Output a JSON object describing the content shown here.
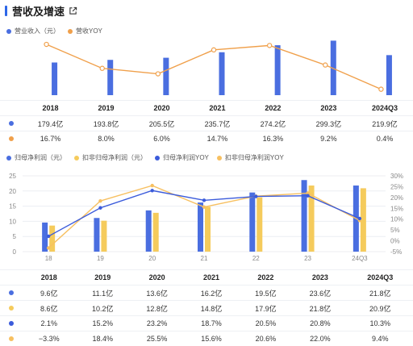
{
  "header": {
    "title": "营收及增速"
  },
  "colors": {
    "blue": "#4a6ee0",
    "orange": "#f0a04b",
    "yellow": "#f5cb5c",
    "darkblue": "#3b5bdb",
    "lightorange": "#f7c061"
  },
  "chart_data": [
    {
      "type": "bar",
      "categories": [
        "2018",
        "2019",
        "2020",
        "2021",
        "2022",
        "2023",
        "2024Q3"
      ],
      "series": [
        {
          "name": "营业收入（元）",
          "values": [
            179.4,
            193.8,
            205.5,
            235.7,
            274.2,
            299.3,
            219.9
          ],
          "labels": [
            "179.4亿",
            "193.8亿",
            "205.5亿",
            "235.7亿",
            "274.2亿",
            "299.3亿",
            "219.9亿"
          ]
        },
        {
          "name": "营收YOY",
          "type": "line",
          "values": [
            16.7,
            8.0,
            6.0,
            14.7,
            16.3,
            9.2,
            0.4
          ],
          "labels": [
            "16.7%",
            "8.0%",
            "6.0%",
            "14.7%",
            "16.3%",
            "9.2%",
            "0.4%"
          ]
        }
      ]
    },
    {
      "type": "bar",
      "categories": [
        "18",
        "19",
        "20",
        "21",
        "22",
        "23",
        "24Q3"
      ],
      "table_categories": [
        "2018",
        "2019",
        "2020",
        "2021",
        "2022",
        "2023",
        "2024Q3"
      ],
      "y_left": {
        "ticks": [
          "0",
          "5",
          "10",
          "15",
          "20",
          "25"
        ],
        "range": [
          0,
          25
        ]
      },
      "y_right": {
        "ticks": [
          "-5%",
          "0%",
          "5%",
          "10%",
          "15%",
          "20%",
          "25%",
          "30%"
        ],
        "range": [
          -5,
          30
        ]
      },
      "series": [
        {
          "name": "归母净利润（元）",
          "values": [
            9.6,
            11.1,
            13.6,
            16.2,
            19.5,
            23.6,
            21.8
          ],
          "labels": [
            "9.6亿",
            "11.1亿",
            "13.6亿",
            "16.2亿",
            "19.5亿",
            "23.6亿",
            "21.8亿"
          ]
        },
        {
          "name": "扣非归母净利润（元）",
          "values": [
            8.6,
            10.2,
            12.8,
            14.8,
            17.9,
            21.8,
            20.9
          ],
          "labels": [
            "8.6亿",
            "10.2亿",
            "12.8亿",
            "14.8亿",
            "17.9亿",
            "21.8亿",
            "20.9亿"
          ]
        },
        {
          "name": "归母净利润YOY",
          "type": "line",
          "values": [
            2.1,
            15.2,
            23.2,
            18.7,
            20.5,
            20.8,
            10.3
          ],
          "labels": [
            "2.1%",
            "15.2%",
            "23.2%",
            "18.7%",
            "20.5%",
            "20.8%",
            "10.3%"
          ]
        },
        {
          "name": "扣非归母净利润YOY",
          "type": "line",
          "values": [
            -3.3,
            18.4,
            25.5,
            15.6,
            20.6,
            22.0,
            9.4
          ],
          "labels": [
            "−3.3%",
            "18.4%",
            "25.5%",
            "15.6%",
            "20.6%",
            "22.0%",
            "9.4%"
          ]
        }
      ]
    }
  ]
}
